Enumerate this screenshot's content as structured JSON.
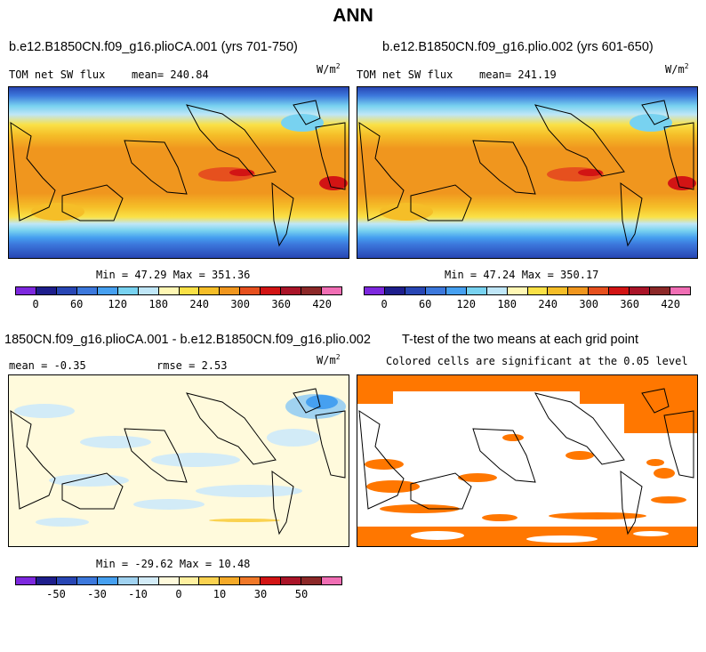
{
  "title": "ANN",
  "chart_data": [
    {
      "type": "heatmap",
      "title": "b.e12.B1850CN.f09_g16.plioCA.001 (yrs 701-750)",
      "subtitle": "TOM net SW flux",
      "mean_label": "mean= 240.84",
      "units": "W/m",
      "units_sup": "2",
      "min_max": "Min =  47.29 Max = 351.36",
      "colorbar_ticks": [
        "0",
        "60",
        "120",
        "180",
        "240",
        "300",
        "360",
        "420"
      ],
      "colorbar_colors": [
        "#7d28de",
        "#1e1e8c",
        "#2846b4",
        "#3c78dc",
        "#46a0f0",
        "#78d2f0",
        "#bfe6f7",
        "#fff7b4",
        "#fae146",
        "#f5be28",
        "#f0961e",
        "#e6501e",
        "#d21414",
        "#aa1428",
        "#8c2828",
        "#f06eb4"
      ]
    },
    {
      "type": "heatmap",
      "title": "b.e12.B1850CN.f09_g16.plio.002 (yrs 601-650)",
      "subtitle": "TOM net SW flux",
      "mean_label": "mean= 241.19",
      "units": "W/m",
      "units_sup": "2",
      "min_max": "Min =  47.24 Max = 350.17",
      "colorbar_ticks": [
        "0",
        "60",
        "120",
        "180",
        "240",
        "300",
        "360",
        "420"
      ],
      "colorbar_colors": [
        "#7d28de",
        "#1e1e8c",
        "#2846b4",
        "#3c78dc",
        "#46a0f0",
        "#78d2f0",
        "#bfe6f7",
        "#fff7b4",
        "#fae146",
        "#f5be28",
        "#f0961e",
        "#e6501e",
        "#d21414",
        "#aa1428",
        "#8c2828",
        "#f06eb4"
      ]
    },
    {
      "type": "heatmap",
      "title": "1850CN.f09_g16.plioCA.001 - b.e12.B1850CN.f09_g16.plio.002",
      "mean_label": "mean =  -0.35",
      "rmse_label": "rmse =   2.53",
      "units": "W/m",
      "units_sup": "2",
      "min_max": "Min = -29.62 Max =  10.48",
      "colorbar_ticks": [
        "-50",
        "-30",
        "-10",
        "0",
        "10",
        "30",
        "50"
      ],
      "colorbar_colors": [
        "#7d28de",
        "#1e1e8c",
        "#2846b4",
        "#3c78dc",
        "#46a0f0",
        "#a0d2f0",
        "#d2ebf7",
        "#fffadc",
        "#fff0a0",
        "#fad250",
        "#f5aa28",
        "#f07828",
        "#d21414",
        "#aa1428",
        "#8c2828",
        "#f06eb4"
      ]
    },
    {
      "type": "heatmap",
      "title": "T-test of the two means at each grid point",
      "subtitle": "Colored cells are significant at the 0.05 level",
      "significance_color": "#ff7700"
    }
  ]
}
